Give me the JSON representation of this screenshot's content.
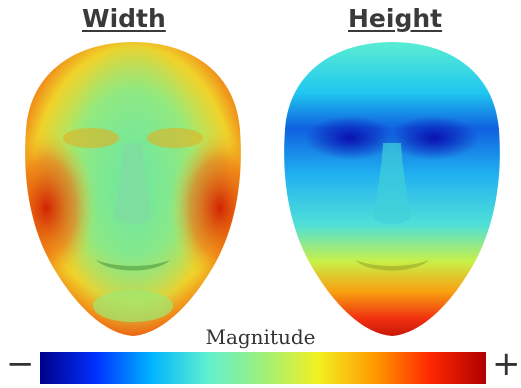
{
  "panels": [
    {
      "title": "Width",
      "heatmap": "high at outer cheeks/temples, low at center"
    },
    {
      "title": "Height",
      "heatmap": "low at eyes/brow, high at chin"
    }
  ],
  "colorbar": {
    "label": "Magnitude",
    "min_symbol": "−",
    "max_symbol": "+",
    "colors": [
      "#00008b",
      "#0030ff",
      "#00b4ff",
      "#5ff0d0",
      "#9ff07a",
      "#f2f020",
      "#ff9a00",
      "#ff2800",
      "#b00000"
    ]
  }
}
